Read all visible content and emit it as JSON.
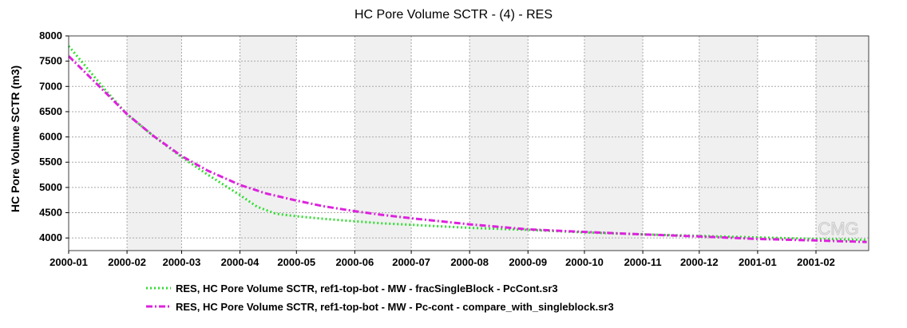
{
  "watermark": "CMG",
  "chart_data": {
    "type": "line",
    "title": "HC Pore Volume SCTR - (4) - RES",
    "xlabel": "",
    "ylabel": "HC Pore Volume SCTR (m3)",
    "xlim": [
      "2000-01-01",
      "2001-03-01"
    ],
    "ylim": [
      3750,
      8000
    ],
    "yticks": [
      4000,
      4500,
      5000,
      5500,
      6000,
      6500,
      7000,
      7500,
      8000
    ],
    "xticks": [
      "2000-01",
      "2000-02",
      "2000-03",
      "2000-04",
      "2000-05",
      "2000-06",
      "2000-07",
      "2000-08",
      "2000-09",
      "2000-10",
      "2000-11",
      "2000-12",
      "2001-01",
      "2001-02"
    ],
    "grid": true,
    "legend_position": "bottom",
    "series": [
      {
        "name": "RES, HC Pore Volume SCTR, ref1-top-bot - MW - fracSingleBlock - PcCont.sr3",
        "color": "#33dd33",
        "style": "dotted",
        "x": [
          "2000-01-01",
          "2000-01-10",
          "2000-01-20",
          "2000-02-01",
          "2000-02-15",
          "2000-03-01",
          "2000-03-15",
          "2000-04-01",
          "2000-04-10",
          "2000-04-20",
          "2000-05-01",
          "2000-05-15",
          "2000-06-01",
          "2000-06-15",
          "2000-07-01",
          "2000-08-01",
          "2000-09-01",
          "2000-10-01",
          "2000-11-01",
          "2000-12-01",
          "2001-01-01",
          "2001-02-01",
          "2001-02-28"
        ],
        "y": [
          7800,
          7400,
          6950,
          6450,
          6020,
          5600,
          5250,
          4850,
          4620,
          4480,
          4430,
          4380,
          4330,
          4290,
          4260,
          4200,
          4160,
          4110,
          4070,
          4040,
          4010,
          3980,
          3960
        ]
      },
      {
        "name": "RES, HC Pore Volume SCTR, ref1-top-bot - MW - Pc-cont - compare_with_singleblock.sr3",
        "color": "#dd22dd",
        "style": "dashdot",
        "x": [
          "2000-01-01",
          "2000-01-10",
          "2000-01-20",
          "2000-02-01",
          "2000-02-15",
          "2000-03-01",
          "2000-03-15",
          "2000-04-01",
          "2000-04-15",
          "2000-05-01",
          "2000-05-15",
          "2000-06-01",
          "2000-06-15",
          "2000-07-01",
          "2000-08-01",
          "2000-09-01",
          "2000-10-01",
          "2000-11-01",
          "2000-12-01",
          "2001-01-01",
          "2001-02-01",
          "2001-02-28"
        ],
        "y": [
          7600,
          7270,
          6900,
          6450,
          6020,
          5620,
          5330,
          5050,
          4880,
          4740,
          4630,
          4530,
          4460,
          4390,
          4270,
          4170,
          4120,
          4070,
          4030,
          3980,
          3950,
          3920
        ]
      }
    ]
  }
}
